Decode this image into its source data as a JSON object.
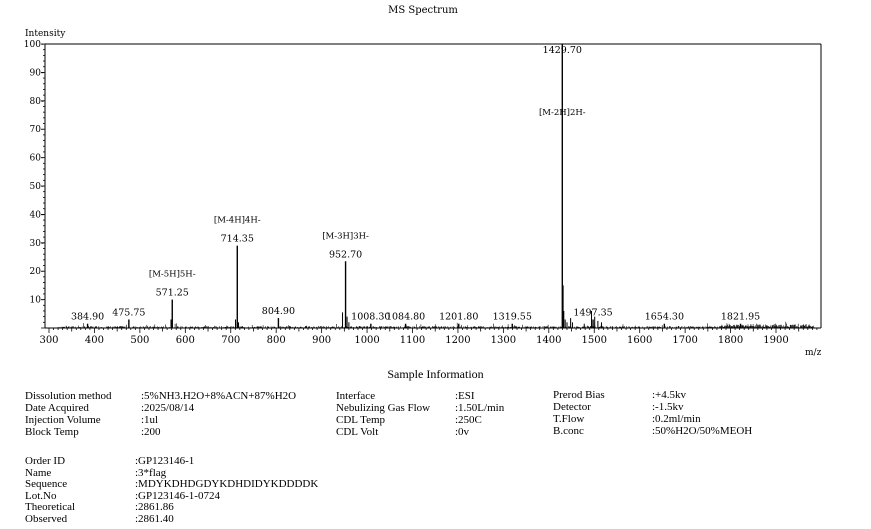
{
  "chart_data": {
    "type": "line",
    "title": "MS Spectrum",
    "ylabel": "Intensity",
    "xlabel": "m/z",
    "xlim": [
      300,
      1990
    ],
    "ylim": [
      0,
      100
    ],
    "x_ticks": [
      300,
      400,
      500,
      600,
      700,
      800,
      900,
      1000,
      1100,
      1200,
      1300,
      1400,
      1500,
      1600,
      1700,
      1800,
      1900
    ],
    "y_ticks": [
      10,
      20,
      30,
      40,
      50,
      60,
      70,
      80,
      90,
      100
    ],
    "peaks": [
      {
        "mz": 384.9,
        "intensity": 1.5,
        "label": "384.90"
      },
      {
        "mz": 475.75,
        "intensity": 3.0,
        "label": "475.75"
      },
      {
        "mz": 571.25,
        "intensity": 10.0,
        "label": "571.25",
        "annotation": "[M-5H]5H-"
      },
      {
        "mz": 714.35,
        "intensity": 29.0,
        "label": "714.35",
        "annotation": "[M-4H]4H-"
      },
      {
        "mz": 804.9,
        "intensity": 3.5,
        "label": "804.90"
      },
      {
        "mz": 952.7,
        "intensity": 23.5,
        "label": "952.70",
        "annotation": "[M-3H]3H-"
      },
      {
        "mz": 1008.3,
        "intensity": 1.5,
        "label": "1008.30"
      },
      {
        "mz": 1084.8,
        "intensity": 1.5,
        "label": "1084.80"
      },
      {
        "mz": 1201.8,
        "intensity": 1.5,
        "label": "1201.80"
      },
      {
        "mz": 1319.55,
        "intensity": 1.5,
        "label": "1319.55"
      },
      {
        "mz": 1429.7,
        "intensity": 100.0,
        "label": "1429.70",
        "annotation": "[M-2H]2H-"
      },
      {
        "mz": 1497.35,
        "intensity": 3.0,
        "label": "1497.35"
      },
      {
        "mz": 1654.3,
        "intensity": 1.5,
        "label": "1654.30"
      },
      {
        "mz": 1821.95,
        "intensity": 1.5,
        "label": "1821.95"
      }
    ],
    "minor_peaks": [
      {
        "mz": 568.5,
        "intensity": 3.0
      },
      {
        "mz": 710.5,
        "intensity": 3.0
      },
      {
        "mz": 717.0,
        "intensity": 2.0
      },
      {
        "mz": 946.0,
        "intensity": 5.5
      },
      {
        "mz": 956.0,
        "intensity": 4.0
      },
      {
        "mz": 960.0,
        "intensity": 2.0
      },
      {
        "mz": 1431.5,
        "intensity": 15.0
      },
      {
        "mz": 1433.0,
        "intensity": 6.0
      },
      {
        "mz": 1436.0,
        "intensity": 3.0
      },
      {
        "mz": 1440.0,
        "intensity": 2.0
      },
      {
        "mz": 1448.0,
        "intensity": 3.5
      },
      {
        "mz": 1452.0,
        "intensity": 2.0
      },
      {
        "mz": 1494.0,
        "intensity": 6.0
      },
      {
        "mz": 1501.0,
        "intensity": 4.0
      },
      {
        "mz": 1508.0,
        "intensity": 2.5
      },
      {
        "mz": 1516.0,
        "intensity": 2.0
      },
      {
        "mz": 1478.0,
        "intensity": 1.5
      },
      {
        "mz": 1860.0,
        "intensity": 1.2
      },
      {
        "mz": 1900.0,
        "intensity": 1.0
      },
      {
        "mz": 1940.0,
        "intensity": 1.2
      }
    ],
    "colors": {
      "trace": "#000000",
      "axis": "#000000"
    }
  },
  "sample_info": {
    "title": "Sample Information",
    "col1": [
      {
        "key": "Dissolution method",
        "value": ":5%NH3.H2O+8%ACN+87%H2O"
      },
      {
        "key": "Date Acquired",
        "value": ":2025/08/14"
      },
      {
        "key": "Injection Volume",
        "value": ":1ul"
      },
      {
        "key": "Block Temp",
        "value": ":200"
      }
    ],
    "col2": [
      {
        "key": "Interface",
        "value": ":ESI"
      },
      {
        "key": "Nebulizing Gas Flow",
        "value": ":1.50L/min"
      },
      {
        "key": "CDL Temp",
        "value": ":250C"
      },
      {
        "key": "CDL Volt",
        "value": ":0v"
      }
    ],
    "col3": [
      {
        "key": "Prerod Bias",
        "value": ":+4.5kv"
      },
      {
        "key": "Detector",
        "value": ":-1.5kv"
      },
      {
        "key": "T.Flow",
        "value": ":0.2ml/min"
      },
      {
        "key": "B.conc",
        "value": ":50%H2O/50%MEOH"
      }
    ],
    "order": [
      {
        "key": "Order ID",
        "value": ":GP123146-1"
      },
      {
        "key": "Name",
        "value": ":3*flag"
      },
      {
        "key": "Sequence",
        "value": ":MDYKDHDGDYKDHDIDYKDDDDK"
      },
      {
        "key": "Lot.No",
        "value": ":GP123146-1-0724"
      },
      {
        "key": "Theoretical",
        "value": ":2861.86"
      },
      {
        "key": "Observed",
        "value": ":2861.40"
      }
    ]
  }
}
